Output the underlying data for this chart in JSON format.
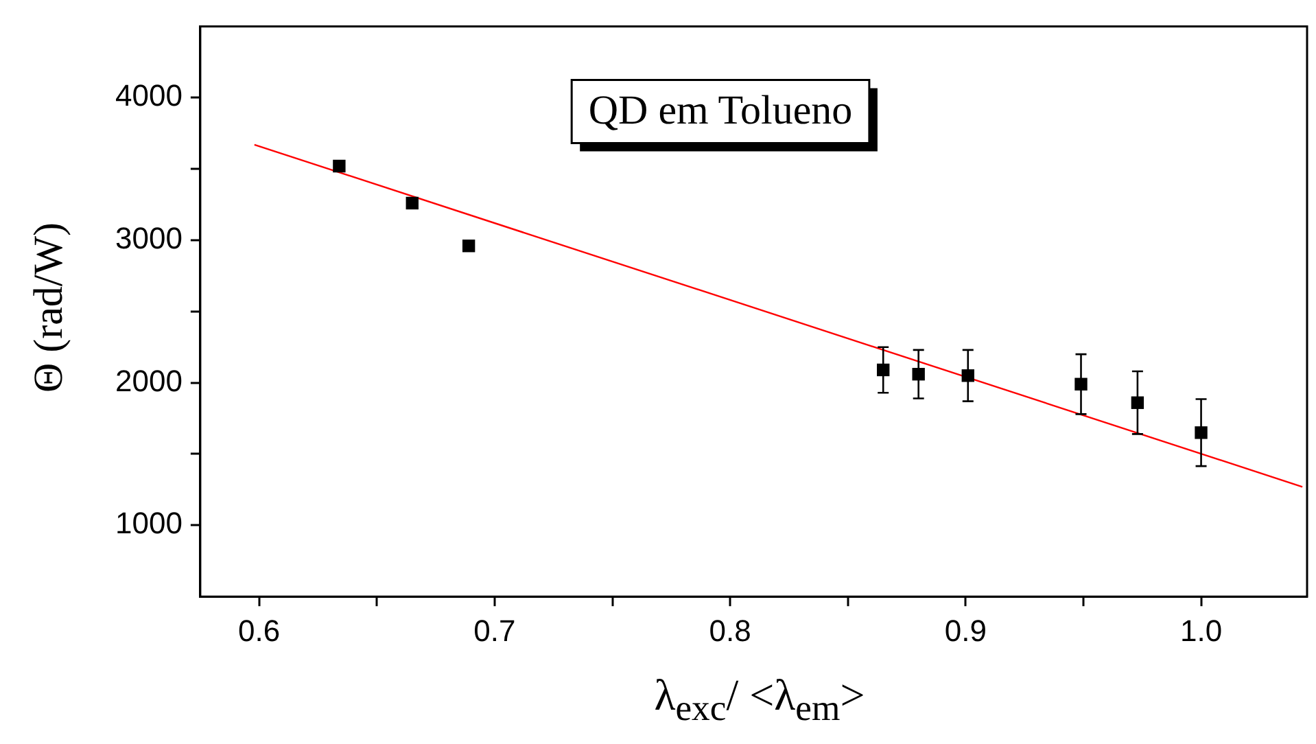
{
  "chart_data": {
    "type": "scatter",
    "annotations": [
      "QD em Tolueno"
    ],
    "xlabel": "λ$_{exc}$/ <λ$_{em}$>",
    "ylabel": "Θ (rad/W)",
    "xlim": [
      0.575,
      1.045
    ],
    "xticks": [
      0.6,
      {
        "value": 0.65,
        "label": null
      },
      0.7,
      {
        "value": 0.75,
        "label": null
      },
      0.8,
      {
        "value": 0.85,
        "label": null
      },
      0.9,
      {
        "value": 0.95,
        "label": null
      },
      {
        "value": 1,
        "label": "1.0"
      }
    ],
    "ylim": [
      500,
      4500
    ],
    "yticks": [
      1000,
      {
        "value": 1500,
        "label": null
      },
      2000,
      {
        "value": 2500,
        "label": null
      },
      3000,
      {
        "value": 3500,
        "label": null
      },
      4000
    ],
    "grid": false,
    "legend": false,
    "marker": "square",
    "series": [
      {
        "type": "scatter",
        "color": "#000000",
        "x": [
          0.634,
          0.665,
          0.689,
          0.865,
          0.88,
          0.901,
          0.949,
          0.973,
          1.0
        ],
        "values": [
          3520,
          3260,
          2960,
          2090,
          2060,
          2050,
          1990,
          1860,
          1650
        ],
        "errors": [
          null,
          null,
          null,
          160,
          170,
          180,
          210,
          220,
          235
        ]
      },
      {
        "type": "line",
        "color": "#ff0000",
        "marker": "none",
        "line_style": "solid",
        "x": [
          0.598,
          1.043
        ],
        "values": [
          3670,
          1270
        ]
      }
    ]
  }
}
